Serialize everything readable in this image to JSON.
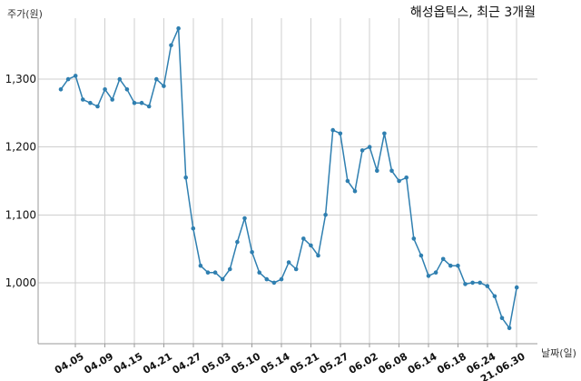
{
  "chart_data": {
    "type": "line",
    "title": "해성옵틱스, 최근 3개월",
    "ylabel": "주가(원)",
    "xlabel": "날짜(일)",
    "ylim": [
      910,
      1390
    ],
    "yticks": [
      1000,
      1100,
      1200,
      1300
    ],
    "ytick_labels": [
      "1,000",
      "1,100",
      "1,200",
      "1,300"
    ],
    "grid": true,
    "xtick_labels": [
      "04.05",
      "04.09",
      "04.15",
      "04.21",
      "04.27",
      "05.03",
      "05.10",
      "05.14",
      "05.21",
      "05.27",
      "06.02",
      "06.08",
      "06.14",
      "06.18",
      "06.24",
      "21.06.30"
    ],
    "xtick_indices": [
      2,
      6,
      10,
      14,
      18,
      22,
      26,
      30,
      34,
      38,
      42,
      46,
      50,
      54,
      58,
      62
    ],
    "colors": {
      "line": "#2f7fb0",
      "marker": "#2f7fb0"
    },
    "series": [
      {
        "values": [
          1285,
          1300,
          1305,
          1270,
          1265,
          1260,
          1285,
          1270,
          1300,
          1285,
          1265,
          1265,
          1260,
          1300,
          1290,
          1350,
          1375,
          1155,
          1080,
          1025,
          1015,
          1015,
          1005,
          1020,
          1060,
          1095,
          1045,
          1015,
          1005,
          1000,
          1005,
          1030,
          1020,
          1065,
          1055,
          1040,
          1100,
          1225,
          1220,
          1150,
          1135,
          1195,
          1200,
          1165,
          1220,
          1165,
          1150,
          1155,
          1065,
          1040,
          1010,
          1015,
          1035,
          1025,
          1025,
          998,
          1000,
          1000,
          995,
          980,
          948,
          933,
          993
        ]
      }
    ]
  }
}
